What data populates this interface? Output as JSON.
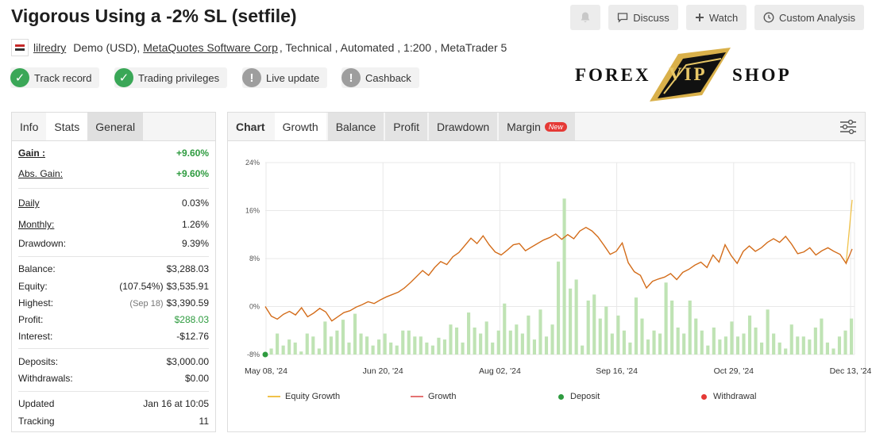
{
  "header": {
    "title": "Vigorous Using a -2% SL (setfile)",
    "discuss": "Discuss",
    "watch": "Watch",
    "custom_analysis": "Custom Analysis"
  },
  "meta": {
    "user": "lilredry",
    "account": "Demo (USD),",
    "broker": "MetaQuotes Software Corp",
    "rest": ", Technical , Automated , 1:200 , MetaTrader 5"
  },
  "badges": [
    "Track record",
    "Trading privileges",
    "Live update",
    "Cashback"
  ],
  "logo": {
    "left": "FOREX",
    "mid": "VIP",
    "right": "SHOP"
  },
  "stats": {
    "tabs": [
      "Info",
      "Stats",
      "General"
    ],
    "gain": {
      "label": "Gain :",
      "value": "+9.60%"
    },
    "abs_gain": {
      "label": "Abs. Gain:",
      "value": "+9.60%"
    },
    "daily": {
      "label": "Daily",
      "value": "0.03%"
    },
    "monthly": {
      "label": "Monthly:",
      "value": "1.26%"
    },
    "drawdown": {
      "label": "Drawdown:",
      "value": "9.39%"
    },
    "balance": {
      "label": "Balance:",
      "value": "$3,288.03"
    },
    "equity": {
      "label": "Equity:",
      "pre": "(107.54%)",
      "value": "$3,535.91"
    },
    "highest": {
      "label": "Highest:",
      "pre": "(Sep 18)",
      "value": "$3,390.59"
    },
    "profit": {
      "label": "Profit:",
      "value": "$288.03"
    },
    "interest": {
      "label": "Interest:",
      "value": "-$12.76"
    },
    "deposits": {
      "label": "Deposits:",
      "value": "$3,000.00"
    },
    "withdrawals": {
      "label": "Withdrawals:",
      "value": "$0.00"
    },
    "updated": {
      "label": "Updated",
      "value": "Jan 16 at 10:05"
    },
    "tracking": {
      "label": "Tracking",
      "value": "11"
    }
  },
  "chart_tabs": [
    "Chart",
    "Growth",
    "Balance",
    "Profit",
    "Drawdown",
    "Margin"
  ],
  "new_badge": "New",
  "legend": {
    "equity_growth": "Equity Growth",
    "growth": "Growth",
    "deposit": "Deposit",
    "withdrawal": "Withdrawal"
  },
  "colors": {
    "growth_line": "#d2691e",
    "equity_line": "#f0c24a",
    "bars": "#bfe3b4",
    "deposit": "#2e9b3f",
    "withdrawal": "#e53935",
    "positive": "#2e9b3f"
  },
  "chart_data": {
    "type": "line",
    "title": "",
    "xlabel": "",
    "ylabel": "",
    "ylim": [
      -8,
      24
    ],
    "y_ticks": [
      "-8%",
      "0%",
      "8%",
      "16%",
      "24%"
    ],
    "y_tick_values": [
      -8,
      0,
      8,
      16,
      24
    ],
    "x_ticks": [
      "May 08, '24",
      "Jun 20, '24",
      "Aug 02, '24",
      "Sep 16, '24",
      "Oct 29, '24",
      "Dec 13, '24"
    ],
    "x_range": [
      "May 08, '24",
      "Dec 20, '24"
    ],
    "grid": true,
    "legend_position": "bottom",
    "series": [
      {
        "name": "Growth",
        "values": [
          0,
          -1.6,
          -2.1,
          -1.3,
          -0.8,
          -1.4,
          -0.2,
          -1.7,
          -1.1,
          -0.3,
          -0.9,
          -2.4,
          -1.7,
          -1.0,
          -0.7,
          -0.1,
          0.3,
          0.8,
          0.5,
          1.1,
          1.6,
          2.0,
          2.4,
          3.1,
          4.0,
          5.0,
          6.0,
          5.2,
          6.5,
          7.5,
          7.0,
          8.3,
          9.0,
          10.2,
          11.4,
          10.5,
          11.8,
          10.3,
          9.1,
          8.6,
          9.4,
          10.3,
          10.5,
          9.3,
          9.9,
          10.5,
          11.1,
          11.5,
          12.1,
          11.2,
          12.0,
          11.3,
          12.6,
          13.2,
          12.6,
          11.6,
          10.2,
          8.7,
          9.2,
          10.6,
          7.3,
          5.8,
          5.2,
          3.1,
          4.2,
          4.6,
          4.9,
          5.5,
          4.5,
          5.7,
          6.2,
          6.9,
          7.4,
          6.5,
          8.6,
          7.4,
          10.3,
          8.5,
          7.2,
          9.2,
          10.1,
          9.2,
          9.8,
          10.7,
          11.3,
          10.7,
          11.7,
          10.4,
          8.8,
          9.1,
          9.8,
          8.6,
          9.3,
          9.8,
          9.2,
          8.7,
          7.2,
          9.6
        ]
      },
      {
        "name": "Equity Growth",
        "values": [
          0,
          -1.6,
          -2.1,
          -1.3,
          -0.8,
          -1.4,
          -0.2,
          -1.7,
          -1.1,
          -0.3,
          -0.9,
          -2.4,
          -1.7,
          -1.0,
          -0.7,
          -0.1,
          0.3,
          0.8,
          0.5,
          1.1,
          1.6,
          2.0,
          2.4,
          3.1,
          4.0,
          5.0,
          6.0,
          5.2,
          6.5,
          7.5,
          7.0,
          8.3,
          9.0,
          10.2,
          11.4,
          10.5,
          11.8,
          10.3,
          9.1,
          8.6,
          9.4,
          10.3,
          10.5,
          9.3,
          9.9,
          10.5,
          11.1,
          11.5,
          12.1,
          11.2,
          12.0,
          11.3,
          12.6,
          13.2,
          12.6,
          11.6,
          10.2,
          8.7,
          9.2,
          10.6,
          7.3,
          5.8,
          5.2,
          3.1,
          4.2,
          4.6,
          4.9,
          5.5,
          4.5,
          5.7,
          6.2,
          6.9,
          7.4,
          6.5,
          8.6,
          7.4,
          10.3,
          8.5,
          7.2,
          9.2,
          10.1,
          9.2,
          9.8,
          10.7,
          11.3,
          10.7,
          11.7,
          10.4,
          8.8,
          9.1,
          9.8,
          8.6,
          9.3,
          9.8,
          9.2,
          8.7,
          7.2,
          17.8
        ]
      }
    ],
    "bars": [
      1,
      3.5,
      1.5,
      2.5,
      2,
      0.5,
      3.5,
      3,
      1,
      5.5,
      3,
      4,
      5.8,
      2,
      6.8,
      3.5,
      3,
      1.5,
      2.5,
      3.5,
      2,
      1.5,
      4,
      4,
      3,
      3,
      2,
      1.5,
      2.8,
      2.5,
      5,
      4.5,
      2,
      7,
      4.5,
      3.5,
      5.5,
      2,
      4,
      8.5,
      4,
      5,
      3.5,
      6.5,
      2.5,
      7.5,
      3,
      5,
      15.5,
      26,
      11,
      12.5,
      1.5,
      9,
      10,
      6,
      8,
      3.5,
      6.5,
      4,
      2,
      9.5,
      6,
      2.5,
      4,
      3.5,
      12,
      9,
      4.5,
      3.5,
      9,
      6,
      4,
      1.5,
      4.5,
      2.5,
      3,
      5.5,
      3,
      3.5,
      6.5,
      4.5,
      2,
      7.5,
      3.5,
      2,
      1,
      5,
      3,
      3,
      2.5,
      4.5,
      6,
      2,
      1,
      3,
      4,
      6
    ]
  }
}
